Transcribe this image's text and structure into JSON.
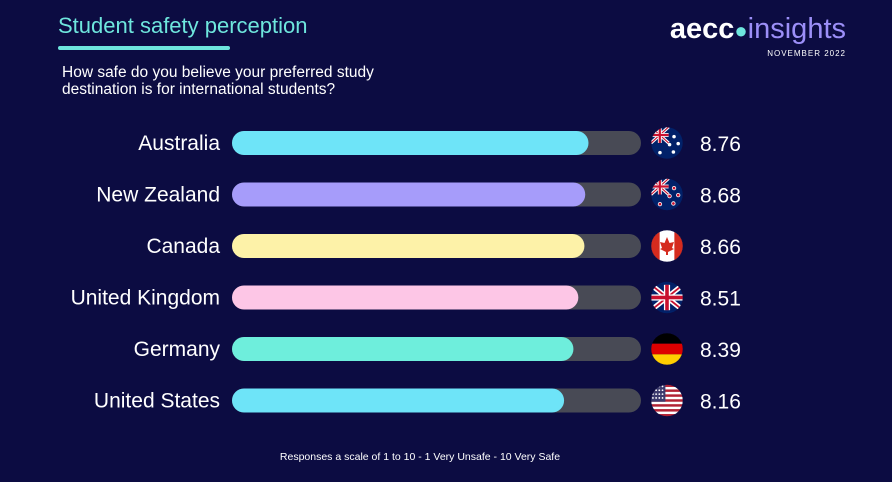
{
  "header": {
    "title": "Student safety perception",
    "subtitle": "How safe do you believe your preferred study destination is for international students?"
  },
  "brand": {
    "logo_main": "aecc",
    "logo_sub": "insights",
    "date": "NOVEMBER 2022"
  },
  "footnote": "Responses a scale of 1 to 10 - 1 Very Unsafe - 10 Very Safe",
  "colors": {
    "background": "#0c0c42",
    "accent": "#6ee6dd",
    "track": "#484a55"
  },
  "chart_data": {
    "type": "bar",
    "orientation": "horizontal",
    "categories": [
      "Australia",
      "New Zealand",
      "Canada",
      "United Kingdom",
      "Germany",
      "United States"
    ],
    "values": [
      8.76,
      8.68,
      8.66,
      8.51,
      8.39,
      8.16
    ],
    "value_labels": [
      "8.76",
      "8.68",
      "8.66",
      "8.51",
      "8.39",
      "8.16"
    ],
    "bar_colors": [
      "#6ee4f8",
      "#a69cfa",
      "#fdf2a8",
      "#fdc6e6",
      "#6eeedc",
      "#6ee4f8"
    ],
    "flag_icons": [
      "australia-flag-icon",
      "new-zealand-flag-icon",
      "canada-flag-icon",
      "united-kingdom-flag-icon",
      "germany-flag-icon",
      "united-states-flag-icon"
    ],
    "xlim": [
      0,
      10
    ],
    "grid": false,
    "legend": false
  }
}
